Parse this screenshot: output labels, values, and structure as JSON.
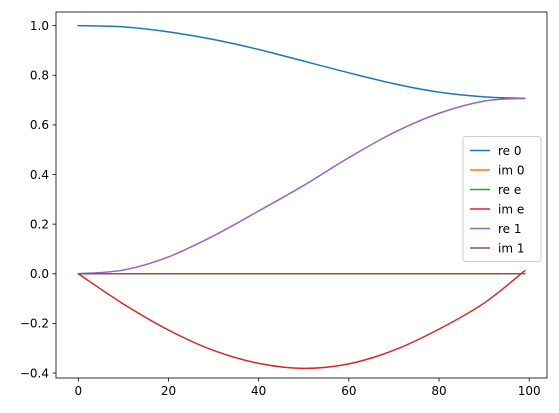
{
  "chart_data": {
    "type": "line",
    "title": "",
    "xlabel": "",
    "ylabel": "",
    "xlim": [
      -4.95,
      103.95
    ],
    "ylim": [
      -0.42,
      1.055
    ],
    "xticks": [
      0,
      20,
      40,
      60,
      80,
      100
    ],
    "yticks": [
      -0.4,
      -0.2,
      0.0,
      0.2,
      0.4,
      0.6,
      0.8,
      1.0
    ],
    "xtick_labels": [
      "0",
      "20",
      "40",
      "60",
      "80",
      "100"
    ],
    "ytick_labels": [
      "−0.4",
      "−0.2",
      "0.0",
      "0.2",
      "0.4",
      "0.6",
      "0.8",
      "1.0"
    ],
    "grid": false,
    "legend_position": "center-right",
    "x": [
      0,
      10,
      20,
      30,
      40,
      50,
      60,
      70,
      80,
      90,
      99
    ],
    "series": [
      {
        "name": "re 0",
        "color": "#1f77b4",
        "values": [
          1.0,
          0.995,
          0.975,
          0.944,
          0.904,
          0.857,
          0.81,
          0.766,
          0.732,
          0.713,
          0.707
        ]
      },
      {
        "name": "im 0",
        "color": "#ff7f0e",
        "values": [
          0,
          0,
          0,
          0,
          0,
          0,
          0,
          0,
          0,
          0,
          0
        ]
      },
      {
        "name": "re e",
        "color": "#2ca02c",
        "values": [
          0,
          0,
          0,
          0,
          0,
          0,
          0,
          0,
          0,
          0,
          0
        ]
      },
      {
        "name": "im e",
        "color": "#d62728",
        "values": [
          0.0,
          -0.122,
          -0.227,
          -0.309,
          -0.361,
          -0.381,
          -0.363,
          -0.308,
          -0.223,
          -0.118,
          0.012
        ]
      },
      {
        "name": "re 1",
        "color": "#9467bd",
        "values": [
          0.0,
          0.015,
          0.068,
          0.153,
          0.253,
          0.356,
          0.468,
          0.569,
          0.647,
          0.696,
          0.707
        ]
      },
      {
        "name": "im 1",
        "color": "#8c564b",
        "values": [
          0,
          0,
          0,
          0,
          0,
          0,
          0,
          0,
          0,
          0,
          0
        ]
      }
    ]
  }
}
